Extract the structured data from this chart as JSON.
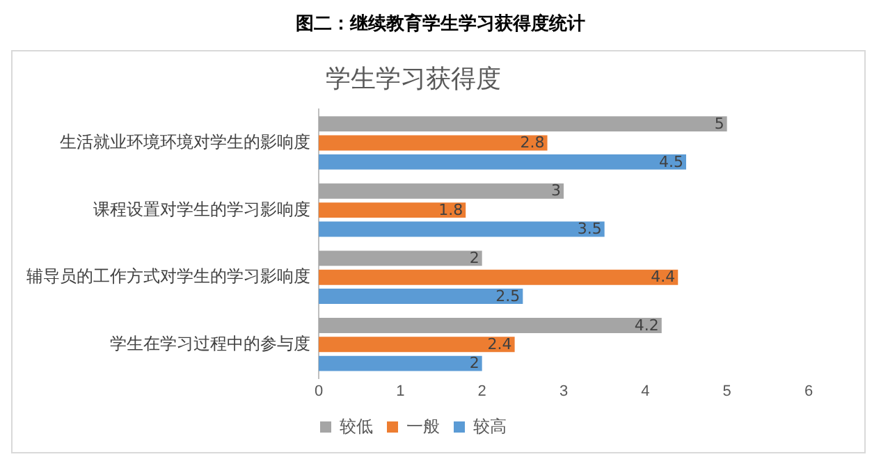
{
  "chart_data": {
    "type": "bar",
    "orientation": "horizontal",
    "title": "学生学习获得度",
    "subtitle": "图二：继续教育学生学习获得度统计",
    "categories": [
      "生活就业环境环境对学生的影响度",
      "课程设置对学生的学习影响度",
      "辅导员的工作方式对学生的学习影响度",
      "学生在学习过程中的参与度"
    ],
    "series": [
      {
        "name": "较低",
        "color": "#a5a5a5",
        "values": [
          5,
          3,
          2,
          4.2
        ]
      },
      {
        "name": "一般",
        "color": "#ed7d31",
        "values": [
          2.8,
          1.8,
          4.4,
          2.4
        ]
      },
      {
        "name": "较高",
        "color": "#5b9bd5",
        "values": [
          4.5,
          3.5,
          2.5,
          2
        ]
      }
    ],
    "xlim": [
      0,
      6
    ],
    "xticks": [
      0,
      1,
      2,
      3,
      4,
      5,
      6
    ],
    "grid": false,
    "legend": "bottom",
    "data_labels": true
  }
}
